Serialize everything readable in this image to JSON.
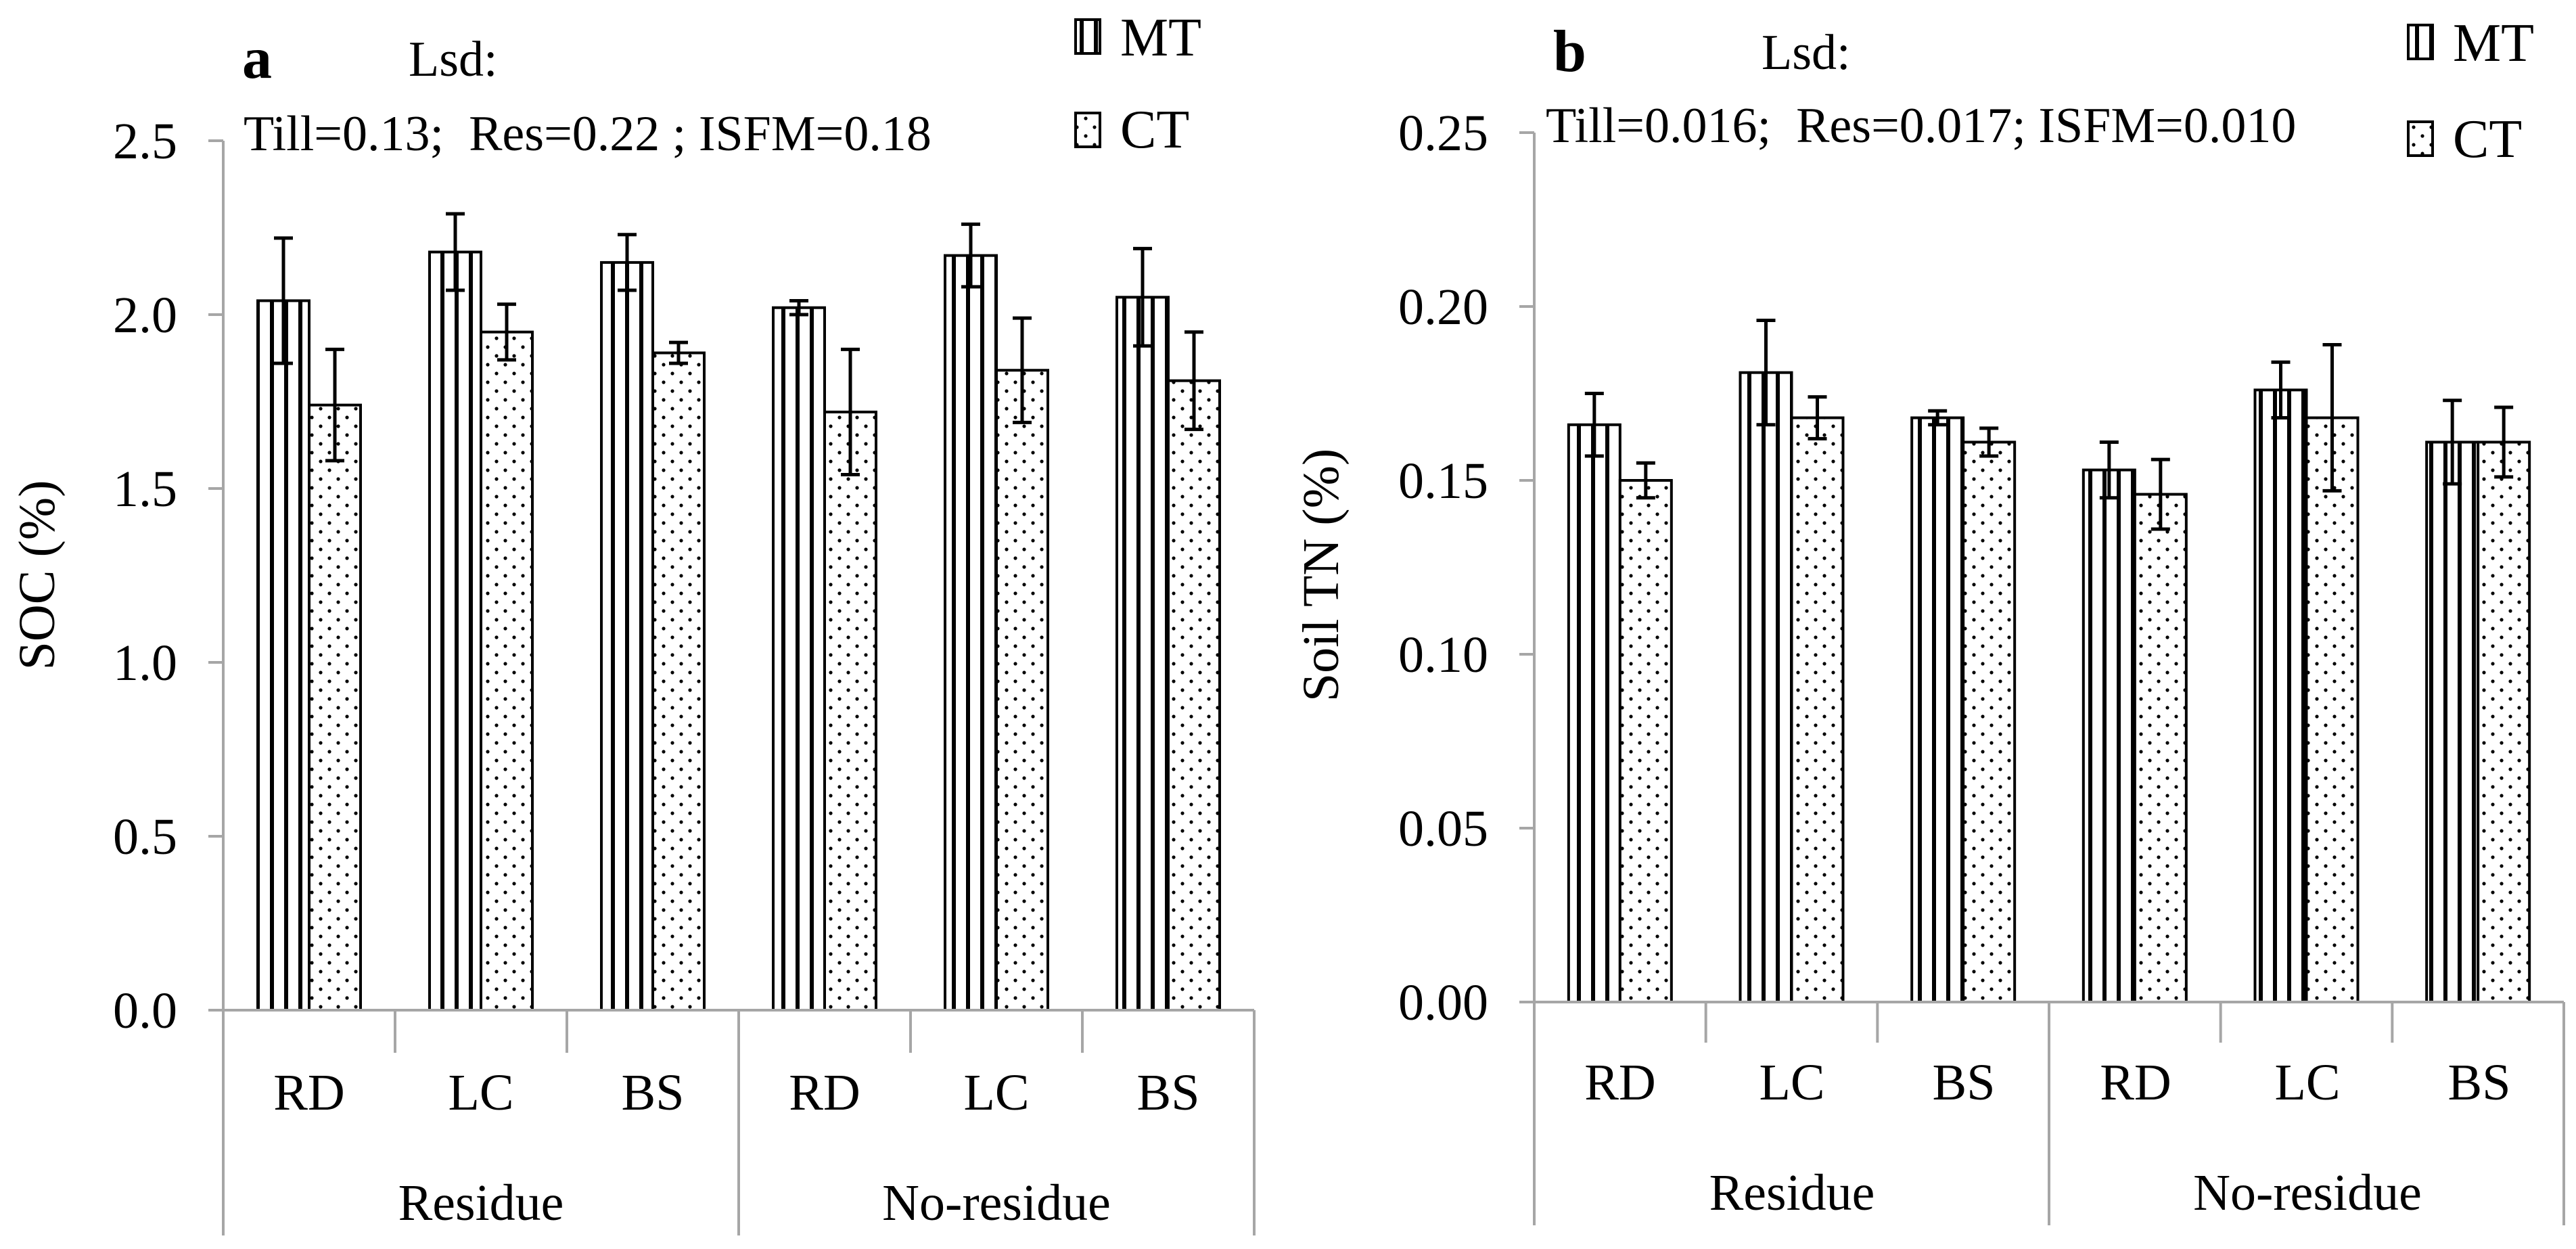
{
  "chart_data": [
    {
      "type": "bar",
      "panel_label": "a",
      "title": "",
      "lsd_label": "Lsd:",
      "lsd_values": "Till=0.13;  Res=0.22 ; ISFM=0.18",
      "ylabel": "SOC (%)",
      "xlabel": "",
      "ylim": [
        0,
        2.5
      ],
      "yticks": [
        "0.0",
        "0.5",
        "1.0",
        "1.5",
        "2.0",
        "2.5"
      ],
      "categories": [
        "RD",
        "LC",
        "BS",
        "RD",
        "LC",
        "BS"
      ],
      "groups": [
        {
          "label": "Residue",
          "span": 3
        },
        {
          "label": "No-residue",
          "span": 3
        }
      ],
      "series": [
        {
          "name": "MT",
          "pattern": "vertical-lines",
          "values": [
            2.04,
            2.18,
            2.15,
            2.02,
            2.17,
            2.05
          ],
          "errors": [
            0.18,
            0.11,
            0.08,
            0.02,
            0.09,
            0.14
          ]
        },
        {
          "name": "CT",
          "pattern": "dots",
          "values": [
            1.74,
            1.95,
            1.89,
            1.72,
            1.84,
            1.81
          ],
          "errors": [
            0.16,
            0.08,
            0.03,
            0.18,
            0.15,
            0.14
          ]
        }
      ],
      "legend": [
        "MT",
        "CT"
      ],
      "legend_position": "top-right",
      "grid": false
    },
    {
      "type": "bar",
      "panel_label": "b",
      "title": "",
      "lsd_label": "Lsd:",
      "lsd_values": "Till=0.016;  Res=0.017; ISFM=0.010",
      "ylabel": "Soil TN (%)",
      "xlabel": "",
      "ylim": [
        0,
        0.25
      ],
      "yticks": [
        "0.00",
        "0.05",
        "0.10",
        "0.15",
        "0.20",
        "0.25"
      ],
      "categories": [
        "RD",
        "LC",
        "BS",
        "RD",
        "LC",
        "BS"
      ],
      "groups": [
        {
          "label": "Residue",
          "span": 3
        },
        {
          "label": "No-residue",
          "span": 3
        }
      ],
      "series": [
        {
          "name": "MT",
          "pattern": "vertical-lines",
          "values": [
            0.166,
            0.181,
            0.168,
            0.153,
            0.176,
            0.161
          ],
          "errors": [
            0.009,
            0.015,
            0.002,
            0.008,
            0.008,
            0.012
          ]
        },
        {
          "name": "CT",
          "pattern": "dots",
          "values": [
            0.15,
            0.168,
            0.161,
            0.146,
            0.168,
            0.161
          ],
          "errors": [
            0.005,
            0.006,
            0.004,
            0.01,
            0.021,
            0.01
          ]
        }
      ],
      "legend": [
        "MT",
        "CT"
      ],
      "legend_position": "top-right",
      "grid": false
    }
  ],
  "colors": {
    "axis": "#a6a6a6",
    "bar_stroke": "#000000",
    "background": "#ffffff"
  }
}
